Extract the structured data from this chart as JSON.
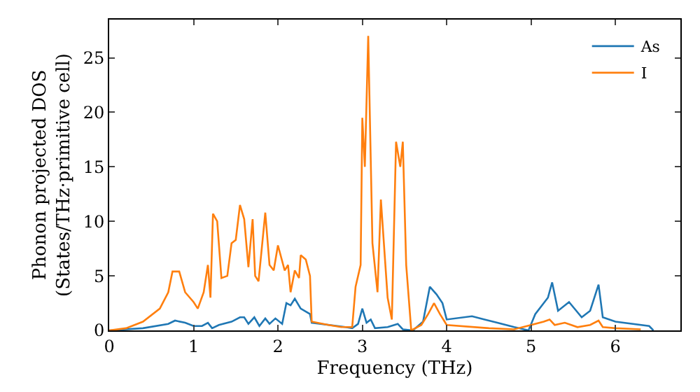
{
  "chart_data": {
    "type": "line",
    "xlabel": "Frequency (THz)",
    "ylabel": "Phonon projected DOS\n(States/THz·primitive cell)",
    "xlim": [
      0,
      6.77
    ],
    "ylim": [
      0,
      28.5
    ],
    "xticks": [
      0,
      1,
      2,
      3,
      4,
      5,
      6
    ],
    "yticks": [
      0,
      5,
      10,
      15,
      20,
      25
    ],
    "legend": "top right",
    "series": [
      {
        "name": "As",
        "color": "#1f77b4",
        "x": [
          0,
          0.4,
          0.7,
          0.78,
          0.9,
          1.0,
          1.1,
          1.17,
          1.22,
          1.3,
          1.45,
          1.55,
          1.6,
          1.65,
          1.72,
          1.78,
          1.85,
          1.9,
          1.97,
          2.05,
          2.1,
          2.15,
          2.2,
          2.27,
          2.38,
          2.4,
          2.8,
          2.88,
          2.95,
          3.0,
          3.05,
          3.1,
          3.15,
          3.3,
          3.42,
          3.48,
          3.6,
          3.72,
          3.8,
          3.88,
          3.95,
          4.0,
          4.3,
          4.45,
          4.6,
          4.8,
          4.97,
          5.05,
          5.2,
          5.25,
          5.32,
          5.45,
          5.6,
          5.7,
          5.8,
          5.85,
          6.0,
          6.4,
          6.45
        ],
        "values": [
          0,
          0.2,
          0.6,
          0.9,
          0.7,
          0.4,
          0.4,
          0.7,
          0.2,
          0.5,
          0.8,
          1.2,
          1.2,
          0.6,
          1.2,
          0.4,
          1.1,
          0.6,
          1.1,
          0.6,
          2.5,
          2.3,
          2.9,
          2,
          1.5,
          0.7,
          0.3,
          0.2,
          0.6,
          2,
          0.7,
          1,
          0.2,
          0.3,
          0.6,
          0.1,
          0,
          0.8,
          4,
          3.3,
          2.5,
          1,
          1.3,
          1,
          0.7,
          0.3,
          0,
          1.5,
          3,
          4.4,
          1.8,
          2.6,
          1.2,
          1.8,
          4.2,
          1.2,
          0.8,
          0.4,
          0
        ]
      },
      {
        "name": "I",
        "color": "#ff7f0e",
        "x": [
          0,
          0.2,
          0.4,
          0.6,
          0.7,
          0.75,
          0.83,
          0.9,
          1.0,
          1.05,
          1.12,
          1.17,
          1.2,
          1.23,
          1.28,
          1.33,
          1.4,
          1.45,
          1.5,
          1.55,
          1.6,
          1.65,
          1.7,
          1.73,
          1.77,
          1.85,
          1.9,
          1.95,
          2.0,
          2.08,
          2.12,
          2.15,
          2.2,
          2.25,
          2.27,
          2.33,
          2.38,
          2.4,
          2.6,
          2.75,
          2.88,
          2.92,
          2.98,
          3.0,
          3.03,
          3.07,
          3.12,
          3.18,
          3.22,
          3.3,
          3.35,
          3.4,
          3.45,
          3.48,
          3.52,
          3.58,
          3.7,
          3.78,
          3.85,
          3.92,
          4.0,
          4.5,
          4.8,
          5.0,
          5.15,
          5.22,
          5.28,
          5.4,
          5.55,
          5.7,
          5.8,
          5.85,
          6.0,
          6.3
        ],
        "values": [
          0,
          0.2,
          0.8,
          2,
          3.5,
          5.4,
          5.4,
          3.5,
          2.6,
          2,
          3.5,
          6,
          3,
          10.7,
          10,
          4.8,
          5,
          8,
          8.3,
          11.5,
          10.2,
          5.8,
          10.2,
          5,
          4.5,
          10.8,
          6,
          5.5,
          7.8,
          5.5,
          6,
          3.5,
          5.5,
          4.8,
          6.9,
          6.5,
          5,
          0.8,
          0.5,
          0.3,
          0.3,
          4,
          6,
          19.5,
          15,
          27,
          8,
          3.5,
          12,
          3,
          1,
          17.3,
          15,
          17.3,
          6,
          0,
          0.5,
          1.5,
          2.5,
          1.5,
          0.5,
          0.2,
          0.1,
          0.5,
          0.8,
          1,
          0.5,
          0.7,
          0.3,
          0.5,
          0.9,
          0.3,
          0.2,
          0.1
        ]
      }
    ]
  }
}
